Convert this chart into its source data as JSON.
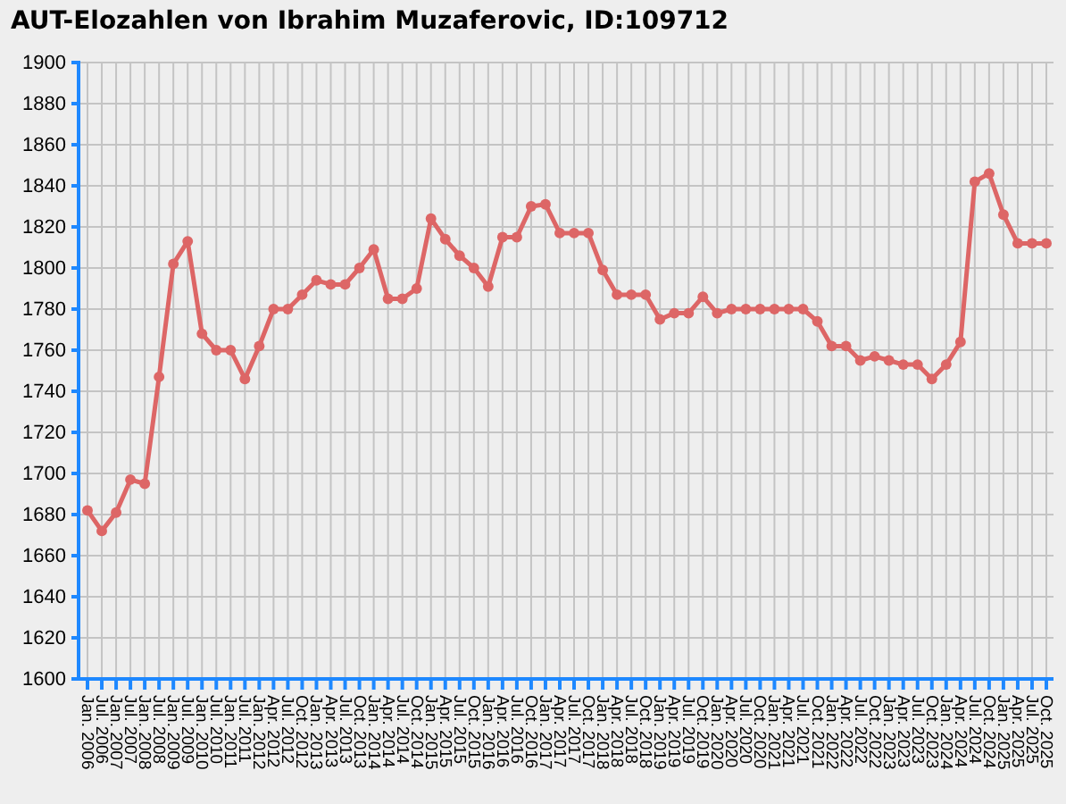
{
  "chart_data": {
    "type": "line",
    "title": "AUT-Elozahlen von Ibrahim Muzaferovic, ID:109712",
    "categories": [
      "Jan. 2006",
      "Jul. 2006",
      "Jan. 2007",
      "Jul. 2007",
      "Jan. 2008",
      "Jul. 2008",
      "Jan. 2009",
      "Jul. 2009",
      "Jan. 2010",
      "Jul. 2010",
      "Jan. 2011",
      "Jul. 2011",
      "Jan. 2012",
      "Apr. 2012",
      "Jul. 2012",
      "Oct. 2012",
      "Jan. 2013",
      "Apr. 2013",
      "Jul. 2013",
      "Oct. 2013",
      "Jan. 2014",
      "Apr. 2014",
      "Jul. 2014",
      "Oct. 2014",
      "Jan. 2015",
      "Apr. 2015",
      "Jul. 2015",
      "Oct. 2015",
      "Jan. 2016",
      "Apr. 2016",
      "Jul. 2016",
      "Oct. 2016",
      "Jan. 2017",
      "Apr. 2017",
      "Jul. 2017",
      "Oct. 2017",
      "Jan. 2018",
      "Apr. 2018",
      "Jul. 2018",
      "Oct. 2018",
      "Jan. 2019",
      "Apr. 2019",
      "Jul. 2019",
      "Oct. 2019",
      "Jan. 2020",
      "Apr. 2020",
      "Jul. 2020",
      "Oct. 2020",
      "Jan. 2021",
      "Apr. 2021",
      "Jul. 2021",
      "Oct. 2021",
      "Jan. 2022",
      "Apr. 2022",
      "Jul. 2022",
      "Oct. 2022",
      "Jan. 2023",
      "Apr. 2023",
      "Jul. 2023",
      "Oct. 2023",
      "Jan. 2024",
      "Apr. 2024",
      "Jul. 2024",
      "Oct. 2024",
      "Jan. 2025",
      "Apr. 2025",
      "Jul. 2025",
      "Oct. 2025"
    ],
    "series": [
      {
        "color": "#dd6666",
        "values": [
          1682,
          1672,
          1681,
          1697,
          1695,
          1747,
          1802,
          1813,
          1768,
          1760,
          1760,
          1746,
          1762,
          1780,
          1780,
          1787,
          1794,
          1792,
          1792,
          1800,
          1809,
          1785,
          1785,
          1790,
          1824,
          1814,
          1806,
          1800,
          1791,
          1815,
          1815,
          1830,
          1831,
          1817,
          1817,
          1817,
          1799,
          1787,
          1787,
          1787,
          1775,
          1778,
          1778,
          1786,
          1778,
          1780,
          1780,
          1780,
          1780,
          1780,
          1780,
          1774,
          1762,
          1762,
          1755,
          1757,
          1755,
          1753,
          1753,
          1746,
          1753,
          1764,
          1842,
          1846,
          1826,
          1812,
          1812,
          1812
        ]
      }
    ],
    "ylim": [
      1600,
      1900
    ],
    "yticks": [
      1600,
      1620,
      1640,
      1660,
      1680,
      1700,
      1720,
      1740,
      1760,
      1780,
      1800,
      1820,
      1840,
      1860,
      1880,
      1900
    ],
    "grid": true,
    "marker": "circle",
    "line_style": "solid"
  }
}
